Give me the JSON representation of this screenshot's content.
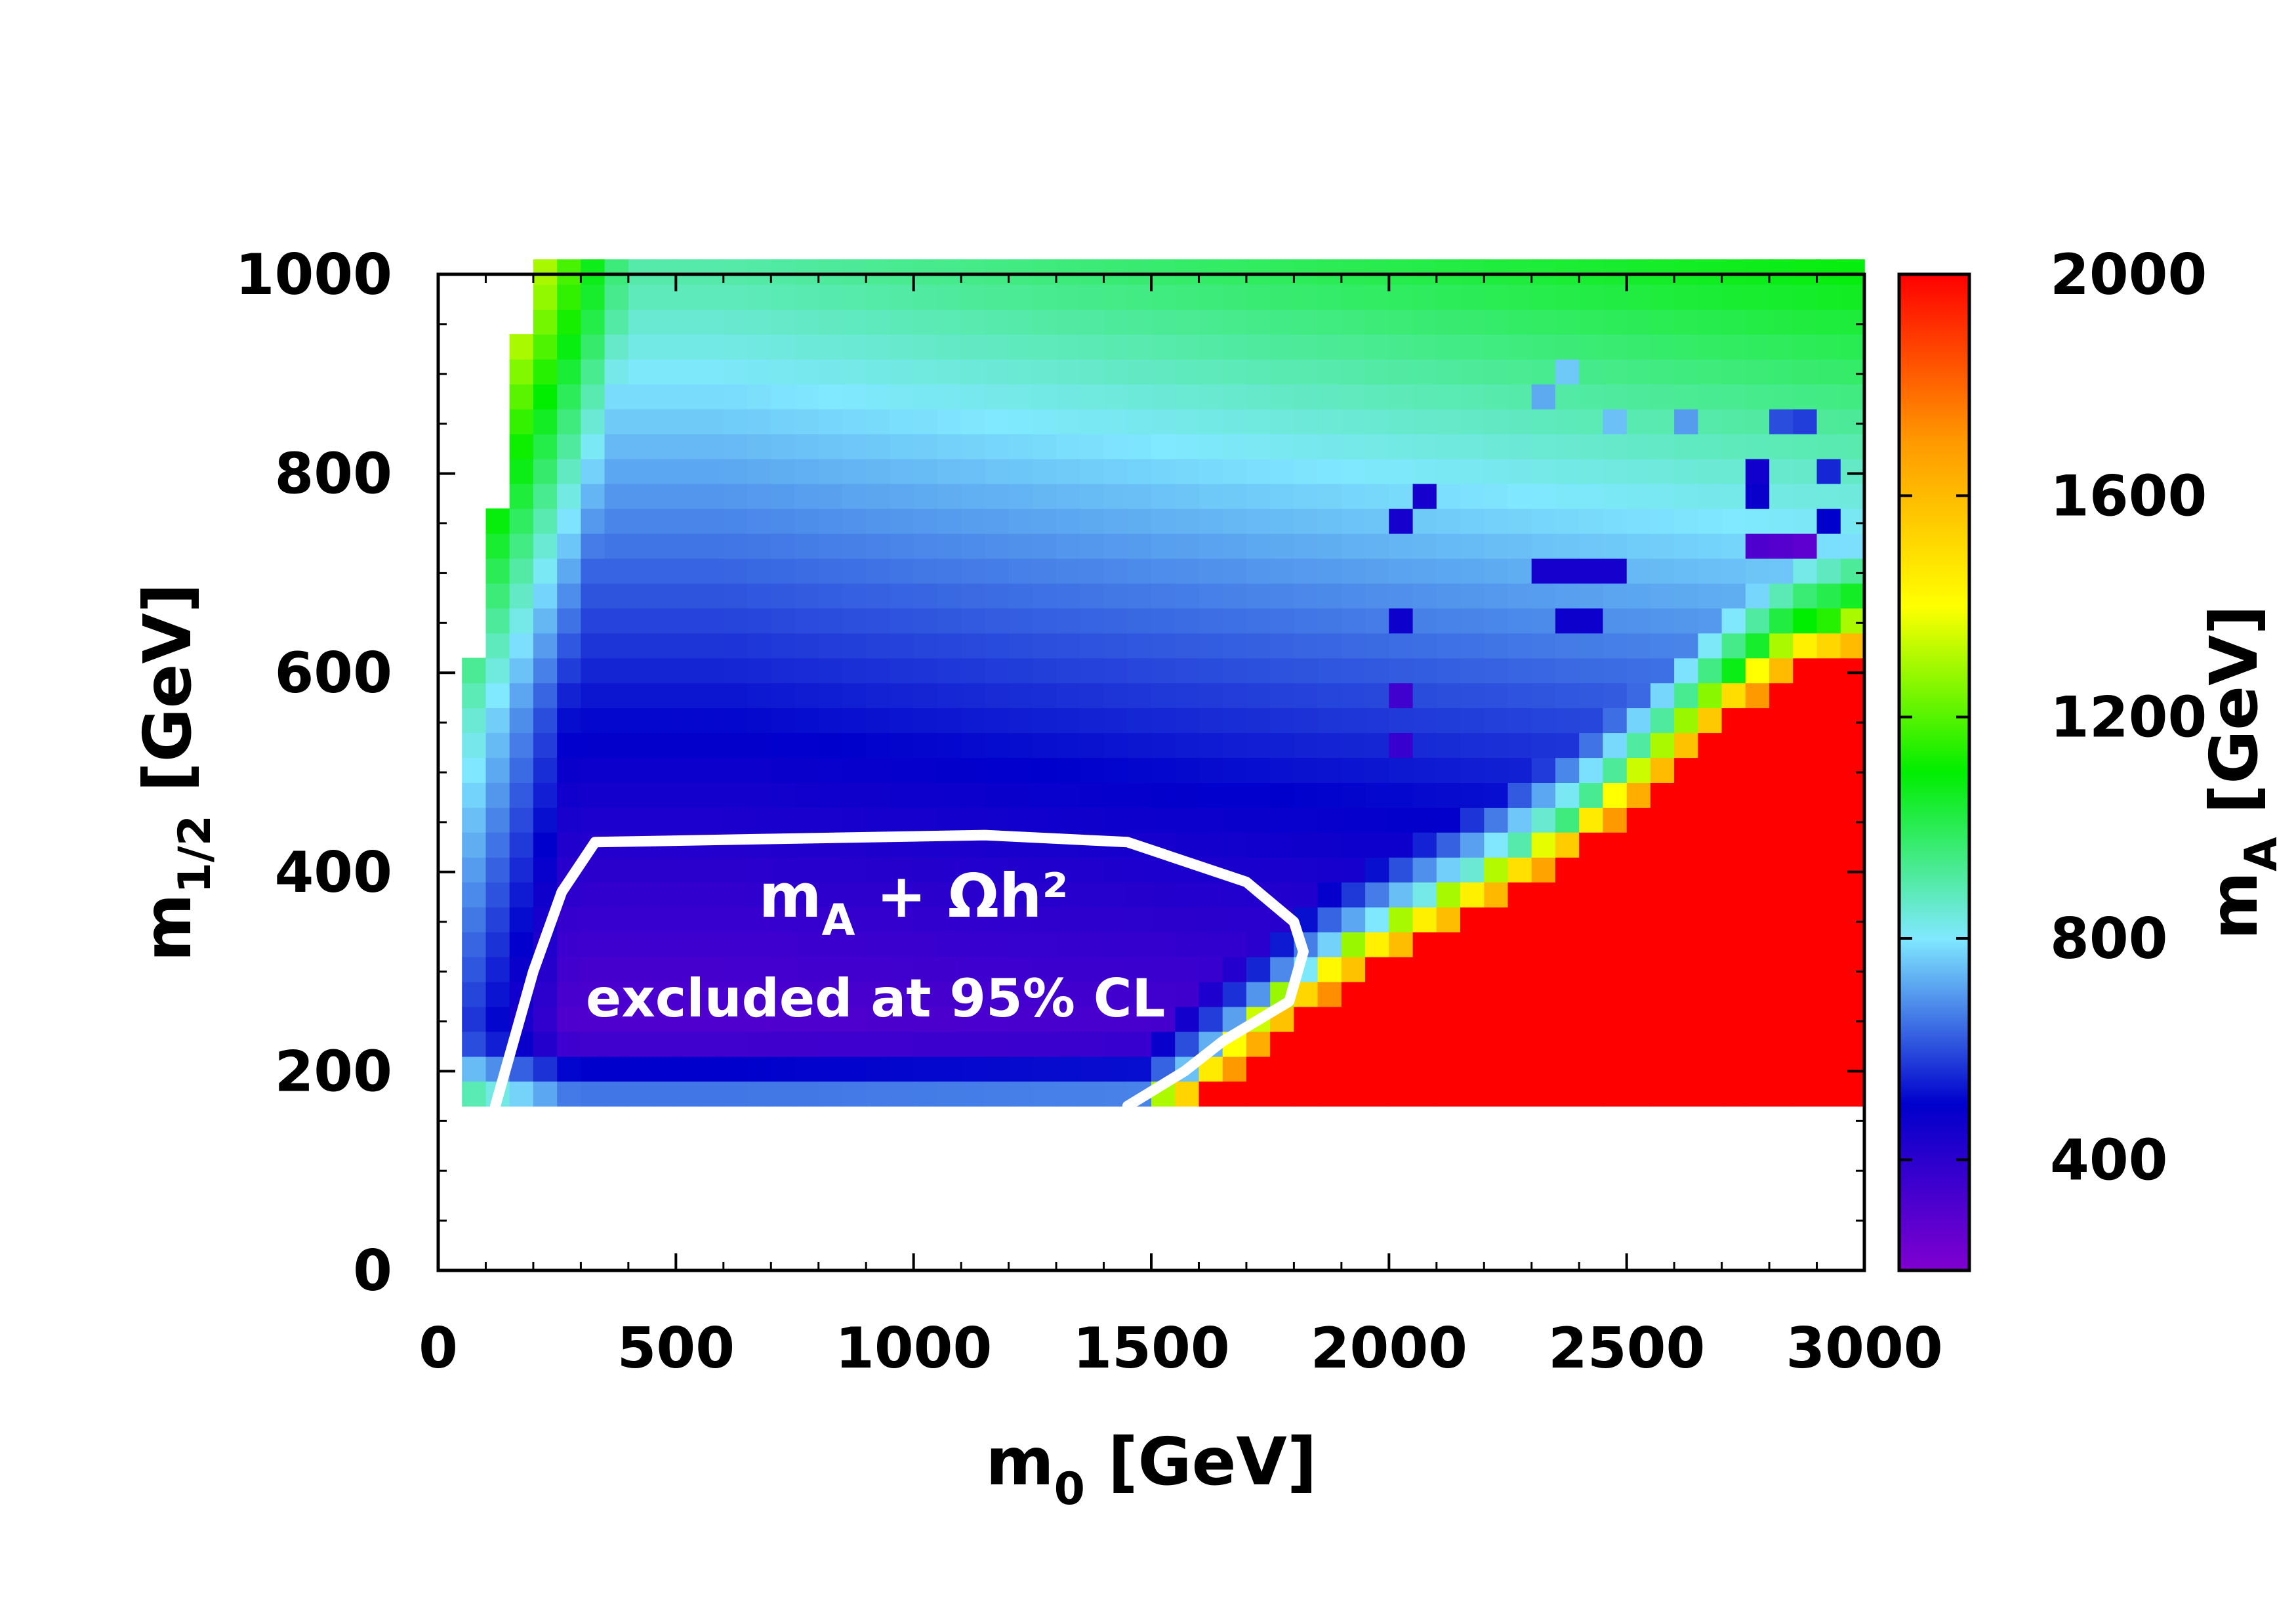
{
  "chart_data": {
    "type": "heatmap",
    "title": "",
    "x_variable": "m",
    "x_subscript": "0",
    "x_unit": "[GeV]",
    "y_variable": "m",
    "y_subscript": "1/2",
    "y_unit": "[GeV]",
    "xlim": [
      0,
      3000
    ],
    "ylim": [
      0,
      1000
    ],
    "x_ticks": [
      "0",
      "500",
      "1000",
      "1500",
      "2000",
      "2500",
      "3000"
    ],
    "y_ticks": [
      "0",
      "200",
      "400",
      "600",
      "800",
      "1000"
    ],
    "x_grid_step": 50,
    "y_grid_step": 25,
    "y_data_min": 165,
    "colorbar": {
      "variable": "m",
      "subscript": "A",
      "unit": "[GeV]",
      "range": [
        200,
        2000
      ],
      "ticks": [
        "400",
        "800",
        "1200",
        "1600",
        "2000"
      ],
      "colors": [
        "#8000d0",
        "#0000cc",
        "#80e8ff",
        "#00ee00",
        "#ffff00",
        "#ff9900",
        "#ff0000"
      ]
    },
    "excluded_region": {
      "label_line1_var": "m",
      "label_line1_sub": "A",
      "label_line1_rest": " + Ωh²",
      "label_line2": "excluded at 95% CL",
      "boundary": [
        [
          120,
          165
        ],
        [
          200,
          300
        ],
        [
          260,
          380
        ],
        [
          330,
          430
        ],
        [
          1150,
          437
        ],
        [
          1450,
          430
        ],
        [
          1700,
          390
        ],
        [
          1800,
          350
        ],
        [
          1820,
          320
        ],
        [
          1790,
          270
        ],
        [
          1650,
          230
        ],
        [
          1570,
          200
        ],
        [
          1450,
          165
        ]
      ]
    },
    "edge_boundary": [
      [
        1480,
        165
      ],
      [
        1600,
        210
      ],
      [
        1750,
        270
      ],
      [
        1850,
        310
      ],
      [
        2000,
        350
      ],
      [
        2200,
        400
      ],
      [
        2400,
        460
      ],
      [
        2550,
        520
      ],
      [
        2700,
        590
      ],
      [
        2850,
        640
      ],
      [
        3000,
        660
      ]
    ],
    "left_boundary": [
      [
        60,
        165
      ],
      [
        60,
        560
      ],
      [
        120,
        760
      ],
      [
        180,
        960
      ],
      [
        180,
        1000
      ]
    ],
    "anomalies": [
      [
        2060,
        750,
        450
      ],
      [
        2110,
        775,
        450
      ],
      [
        2060,
        650,
        470
      ],
      [
        2340,
        700,
        450
      ],
      [
        2400,
        700,
        450
      ],
      [
        2460,
        700,
        450
      ],
      [
        2400,
        650,
        470
      ],
      [
        2460,
        650,
        470
      ],
      [
        2510,
        700,
        450
      ],
      [
        2050,
        575,
        350
      ],
      [
        2050,
        525,
        370
      ],
      [
        2800,
        725,
        320
      ],
      [
        2860,
        725,
        300
      ],
      [
        2910,
        725,
        280
      ],
      [
        2950,
        760,
        500
      ],
      [
        2960,
        810,
        550
      ],
      [
        2780,
        770,
        480
      ],
      [
        2780,
        790,
        460
      ],
      [
        2870,
        850,
        600
      ],
      [
        2920,
        850,
        580
      ],
      [
        2640,
        850,
        700
      ],
      [
        2520,
        850,
        750
      ],
      [
        2340,
        880,
        720
      ],
      [
        2420,
        900,
        760
      ]
    ]
  }
}
